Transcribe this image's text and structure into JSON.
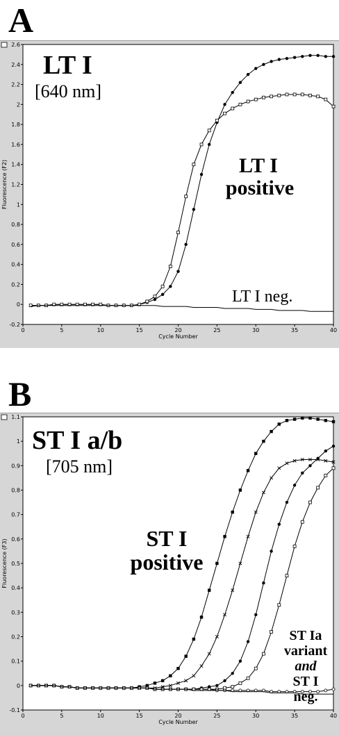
{
  "panels": {
    "a": {
      "letter": "A"
    },
    "b": {
      "letter": "B"
    }
  },
  "chart_data": [
    {
      "type": "line",
      "panel": "A",
      "xlabel": "Cycle Number",
      "ylabel": "Fluorescence (F2)",
      "xlim": [
        0,
        40
      ],
      "ylim": [
        -0.2,
        2.6
      ],
      "x_ticks": [
        "0",
        "5",
        "10",
        "15",
        "20",
        "25",
        "30",
        "35",
        "40"
      ],
      "y_ticks": [
        "-0.2",
        "0",
        "0.2",
        "0.4",
        "0.6",
        "0.8",
        "1",
        "1.2",
        "1.4",
        "1.6",
        "1.8",
        "2",
        "2.2",
        "2.4",
        "2.6"
      ],
      "grid": false,
      "annotations": {
        "title": "LT I",
        "wavelength": "[640 nm]",
        "positive_line1": "LT I",
        "positive_line2": "positive",
        "negative": "LT I neg."
      },
      "x": [
        1,
        2,
        3,
        4,
        5,
        6,
        7,
        8,
        9,
        10,
        11,
        12,
        13,
        14,
        15,
        16,
        17,
        18,
        19,
        20,
        21,
        22,
        23,
        24,
        25,
        26,
        27,
        28,
        29,
        30,
        31,
        32,
        33,
        34,
        35,
        36,
        37,
        38,
        39,
        40
      ],
      "series": [
        {
          "marker": "filled-circle",
          "values": [
            -0.01,
            -0.01,
            -0.01,
            0,
            0,
            0,
            0,
            0,
            0,
            0,
            -0.01,
            -0.01,
            -0.01,
            -0.01,
            0,
            0.02,
            0.05,
            0.1,
            0.18,
            0.33,
            0.6,
            0.95,
            1.3,
            1.6,
            1.82,
            2.0,
            2.12,
            2.22,
            2.3,
            2.36,
            2.4,
            2.43,
            2.45,
            2.46,
            2.47,
            2.48,
            2.49,
            2.49,
            2.48,
            2.48
          ]
        },
        {
          "marker": "open-square",
          "values": [
            -0.01,
            -0.01,
            -0.01,
            0,
            0,
            0,
            0,
            0,
            0,
            0,
            -0.01,
            -0.01,
            -0.01,
            -0.01,
            0,
            0.03,
            0.08,
            0.18,
            0.38,
            0.72,
            1.08,
            1.4,
            1.6,
            1.74,
            1.84,
            1.91,
            1.96,
            2.0,
            2.03,
            2.05,
            2.07,
            2.08,
            2.09,
            2.1,
            2.1,
            2.1,
            2.09,
            2.08,
            2.05,
            1.98
          ]
        },
        {
          "marker": "none",
          "values": [
            -0.02,
            -0.01,
            -0.01,
            -0.01,
            -0.01,
            -0.01,
            -0.01,
            -0.01,
            -0.01,
            -0.01,
            -0.01,
            -0.01,
            -0.01,
            -0.01,
            -0.01,
            -0.01,
            -0.01,
            -0.02,
            -0.02,
            -0.02,
            -0.02,
            -0.03,
            -0.03,
            -0.03,
            -0.03,
            -0.04,
            -0.04,
            -0.04,
            -0.04,
            -0.05,
            -0.05,
            -0.05,
            -0.06,
            -0.06,
            -0.06,
            -0.06,
            -0.07,
            -0.07,
            -0.07,
            -0.07
          ]
        }
      ]
    },
    {
      "type": "line",
      "panel": "B",
      "xlabel": "Cycle Number",
      "ylabel": "Fluorescence (F3)",
      "xlim": [
        0,
        40
      ],
      "ylim": [
        -0.1,
        1.1
      ],
      "x_ticks": [
        "0",
        "5",
        "10",
        "15",
        "20",
        "25",
        "30",
        "35",
        "40"
      ],
      "y_ticks": [
        "-0.1",
        "0",
        "0.1",
        "0.2",
        "0.3",
        "0.4",
        "0.5",
        "0.6",
        "0.7",
        "0.8",
        "0.9",
        "1",
        "1.1"
      ],
      "grid": false,
      "annotations": {
        "title": "ST I a/b",
        "wavelength": "[705 nm]",
        "positive_line1": "ST I",
        "positive_line2": "positive",
        "variant_line1": "ST Ia",
        "variant_line2": "variant",
        "variant_line3": "and",
        "variant_line4": "ST I",
        "variant_line5": "neg."
      },
      "x": [
        1,
        2,
        3,
        4,
        5,
        6,
        7,
        8,
        9,
        10,
        11,
        12,
        13,
        14,
        15,
        16,
        17,
        18,
        19,
        20,
        21,
        22,
        23,
        24,
        25,
        26,
        27,
        28,
        29,
        30,
        31,
        32,
        33,
        34,
        35,
        36,
        37,
        38,
        39,
        40
      ],
      "series": [
        {
          "marker": "filled-square",
          "values": [
            0,
            0,
            0,
            0,
            -0.005,
            -0.005,
            -0.01,
            -0.01,
            -0.01,
            -0.01,
            -0.01,
            -0.01,
            -0.01,
            -0.01,
            -0.005,
            0,
            0.01,
            0.02,
            0.04,
            0.07,
            0.12,
            0.19,
            0.28,
            0.39,
            0.5,
            0.61,
            0.71,
            0.8,
            0.88,
            0.95,
            1.0,
            1.04,
            1.07,
            1.085,
            1.09,
            1.095,
            1.095,
            1.09,
            1.085,
            1.08
          ]
        },
        {
          "marker": "cross",
          "values": [
            0,
            0,
            0,
            0,
            -0.005,
            -0.005,
            -0.01,
            -0.01,
            -0.01,
            -0.01,
            -0.01,
            -0.01,
            -0.01,
            -0.01,
            -0.01,
            -0.01,
            -0.01,
            -0.005,
            0,
            0.01,
            0.02,
            0.04,
            0.08,
            0.13,
            0.2,
            0.29,
            0.39,
            0.5,
            0.61,
            0.71,
            0.79,
            0.85,
            0.89,
            0.91,
            0.92,
            0.925,
            0.925,
            0.925,
            0.92,
            0.915
          ]
        },
        {
          "marker": "filled-circle",
          "values": [
            0,
            0,
            0,
            0,
            -0.005,
            -0.005,
            -0.01,
            -0.01,
            -0.01,
            -0.01,
            -0.01,
            -0.01,
            -0.01,
            -0.01,
            -0.01,
            -0.01,
            -0.015,
            -0.015,
            -0.015,
            -0.015,
            -0.015,
            -0.015,
            -0.01,
            -0.005,
            0,
            0.02,
            0.05,
            0.1,
            0.18,
            0.29,
            0.42,
            0.55,
            0.66,
            0.75,
            0.82,
            0.87,
            0.9,
            0.93,
            0.96,
            0.98
          ]
        },
        {
          "marker": "open-square",
          "values": [
            0,
            0,
            0,
            0,
            -0.005,
            -0.005,
            -0.01,
            -0.01,
            -0.01,
            -0.01,
            -0.01,
            -0.01,
            -0.01,
            -0.01,
            -0.01,
            -0.01,
            -0.015,
            -0.015,
            -0.015,
            -0.015,
            -0.015,
            -0.015,
            -0.015,
            -0.015,
            -0.015,
            -0.01,
            -0.005,
            0.01,
            0.03,
            0.07,
            0.13,
            0.22,
            0.33,
            0.45,
            0.57,
            0.67,
            0.75,
            0.81,
            0.86,
            0.89
          ]
        },
        {
          "marker": "open-circle",
          "values": [
            0,
            0,
            0,
            0,
            -0.005,
            -0.005,
            -0.01,
            -0.01,
            -0.01,
            -0.01,
            -0.01,
            -0.01,
            -0.01,
            -0.01,
            -0.01,
            -0.01,
            -0.015,
            -0.015,
            -0.015,
            -0.015,
            -0.015,
            -0.015,
            -0.015,
            -0.015,
            -0.02,
            -0.02,
            -0.02,
            -0.02,
            -0.02,
            -0.02,
            -0.02,
            -0.025,
            -0.025,
            -0.025,
            -0.025,
            -0.025,
            -0.025,
            -0.025,
            -0.02,
            -0.015
          ]
        },
        {
          "marker": "none",
          "values": [
            0,
            0,
            0,
            0,
            -0.005,
            -0.005,
            -0.01,
            -0.01,
            -0.01,
            -0.01,
            -0.01,
            -0.01,
            -0.01,
            -0.01,
            -0.01,
            -0.01,
            -0.015,
            -0.015,
            -0.015,
            -0.015,
            -0.015,
            -0.02,
            -0.02,
            -0.02,
            -0.02,
            -0.02,
            -0.025,
            -0.025,
            -0.025,
            -0.025,
            -0.025,
            -0.03,
            -0.03,
            -0.03,
            -0.03,
            -0.035,
            -0.035,
            -0.035,
            -0.035,
            -0.035
          ]
        }
      ]
    }
  ]
}
